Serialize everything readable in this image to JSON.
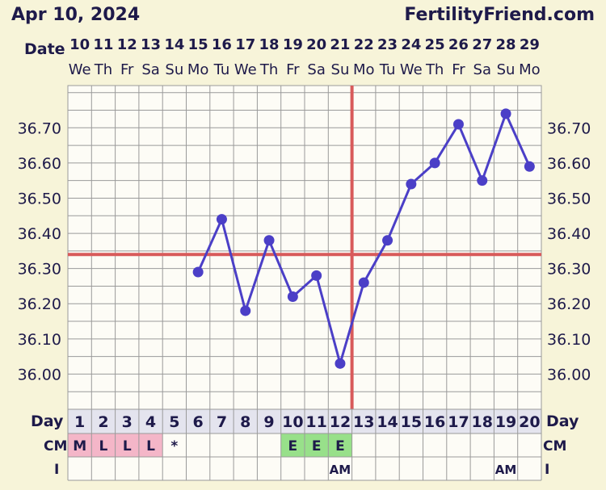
{
  "header": {
    "chart_date": "Apr 10, 2024",
    "site": "FertilityFriend.com"
  },
  "labels": {
    "date": "Date",
    "day": "Day",
    "cm": "CM",
    "i": "I"
  },
  "colors": {
    "background": "#f7f4d9",
    "grid_bg": "#fdfcf6",
    "grid_line": "#9a9a9a",
    "temp_line": "#4b3fc7",
    "coverline": "#d85a5a",
    "row_header_bg": "#e4e4ee",
    "menses_bg": "#f4b6c8",
    "egg_white_bg": "#98e08a",
    "text": "#1e1a4a"
  },
  "chart_data": {
    "type": "line",
    "dates": [
      "10",
      "11",
      "12",
      "13",
      "14",
      "15",
      "16",
      "17",
      "18",
      "19",
      "20",
      "21",
      "22",
      "23",
      "24",
      "25",
      "26",
      "27",
      "28",
      "29"
    ],
    "weekdays": [
      "We",
      "Th",
      "Fr",
      "Sa",
      "Su",
      "Mo",
      "Tu",
      "We",
      "Th",
      "Fr",
      "Sa",
      "Su",
      "Mo",
      "Tu",
      "We",
      "Th",
      "Fr",
      "Sa",
      "Su",
      "Mo"
    ],
    "cycle_days": [
      1,
      2,
      3,
      4,
      5,
      6,
      7,
      8,
      9,
      10,
      11,
      12,
      13,
      14,
      15,
      16,
      17,
      18,
      19,
      20
    ],
    "y_ticks": [
      "36.00",
      "36.10",
      "36.20",
      "36.30",
      "36.40",
      "36.50",
      "36.60",
      "36.70"
    ],
    "ylim": [
      35.9,
      36.82
    ],
    "series": [
      {
        "values": [
          null,
          null,
          null,
          null,
          null,
          36.29,
          36.44,
          36.18,
          36.38,
          36.22,
          36.28,
          36.03,
          36.26,
          36.38,
          36.54,
          36.6,
          36.71,
          36.55,
          36.74,
          36.59
        ]
      }
    ],
    "coverline": 36.34,
    "ovulation_day_index": 12,
    "cm": [
      "M",
      "L",
      "L",
      "L",
      "*",
      "",
      "",
      "",
      "",
      "E",
      "E",
      "E",
      "",
      "",
      "",
      "",
      "",
      "",
      "",
      ""
    ],
    "intercourse": [
      "",
      "",
      "",
      "",
      "",
      "",
      "",
      "",
      "",
      "",
      "",
      "AM",
      "",
      "",
      "",
      "",
      "",
      "",
      "AM",
      ""
    ]
  }
}
